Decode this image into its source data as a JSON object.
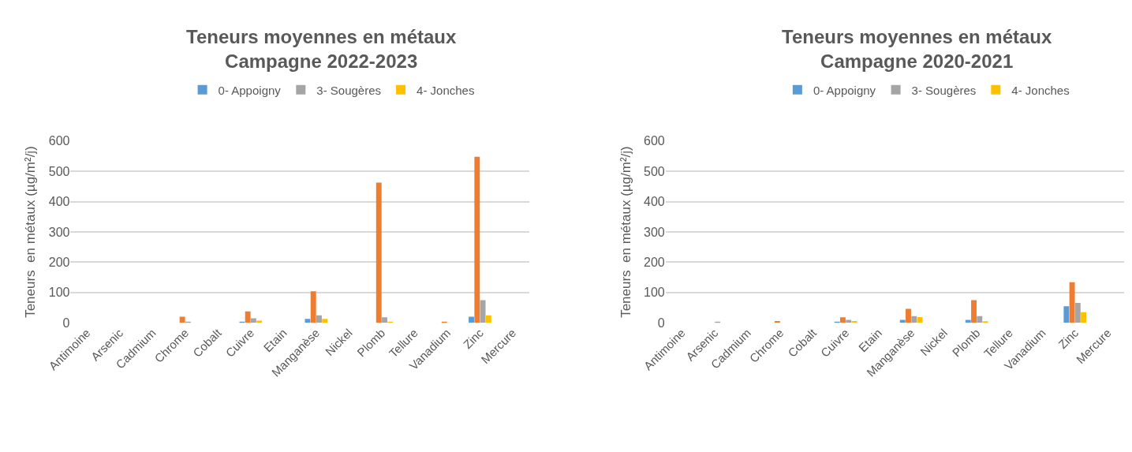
{
  "chart_data": [
    {
      "type": "bar",
      "title": "Teneurs moyennes en métaux\nCampagne 2022-2023",
      "ylabel": "Teneurs  en métaux (µg/m²/j)",
      "categories": [
        "Antimoine",
        "Arsenic",
        "Cadmium",
        "Chrome",
        "Cobalt",
        "Cuivre",
        "Etain",
        "Manganèse",
        "Nickel",
        "Plomb",
        "Tellure",
        "Vanadium",
        "Zinc",
        "Mercure"
      ],
      "series": [
        {
          "name": "0- Appoigny",
          "color": "#5b9bd5",
          "values": [
            0,
            0,
            0,
            0,
            0,
            3,
            0,
            13,
            0,
            0,
            0,
            0,
            20,
            0
          ]
        },
        {
          "color": "#ed7d31",
          "values": [
            0,
            0,
            0,
            20,
            0,
            38,
            0,
            104,
            0,
            463,
            0,
            4,
            548,
            0
          ]
        },
        {
          "name": "3- Sougères",
          "color": "#a5a5a5",
          "values": [
            0,
            0,
            0,
            3,
            0,
            15,
            0,
            25,
            0,
            18,
            0,
            0,
            75,
            0
          ]
        },
        {
          "name": "4- Jonches",
          "color": "#ffc000",
          "values": [
            0,
            0,
            0,
            0,
            0,
            7,
            0,
            13,
            0,
            3,
            0,
            0,
            25,
            0
          ]
        }
      ],
      "ylim": [
        0,
        600
      ],
      "yticks": [
        0,
        100,
        200,
        300,
        400,
        500,
        600
      ],
      "grid": "y",
      "legend": "top"
    },
    {
      "type": "bar",
      "title": "Teneurs moyennes en métaux\nCampagne 2020-2021",
      "ylabel": "Teneurs  en métaux (µg/m²/j)",
      "categories": [
        "Antimoine",
        "Arsenic",
        "Cadmium",
        "Chrome",
        "Cobalt",
        "Cuivre",
        "Etain",
        "Manganèse",
        "Nickel",
        "Plomb",
        "Tellure",
        "Vanadium",
        "Zinc",
        "Mercure"
      ],
      "series": [
        {
          "name": "0- Appoigny",
          "color": "#5b9bd5",
          "values": [
            0,
            0,
            0,
            0,
            0,
            3,
            0,
            10,
            0,
            10,
            0,
            0,
            55,
            0
          ]
        },
        {
          "color": "#ed7d31",
          "values": [
            0,
            0,
            0,
            6,
            0,
            18,
            0,
            46,
            0,
            75,
            0,
            0,
            134,
            0
          ]
        },
        {
          "name": "3- Sougères",
          "color": "#a5a5a5",
          "values": [
            0,
            3,
            0,
            0,
            0,
            10,
            0,
            22,
            0,
            22,
            0,
            0,
            66,
            0
          ]
        },
        {
          "name": "4- Jonches",
          "color": "#ffc000",
          "values": [
            0,
            0,
            0,
            0,
            0,
            6,
            0,
            19,
            0,
            5,
            0,
            0,
            35,
            0
          ]
        }
      ],
      "ylim": [
        0,
        600
      ],
      "yticks": [
        0,
        100,
        200,
        300,
        400,
        500,
        600
      ],
      "grid": "y",
      "legend": "top"
    }
  ]
}
